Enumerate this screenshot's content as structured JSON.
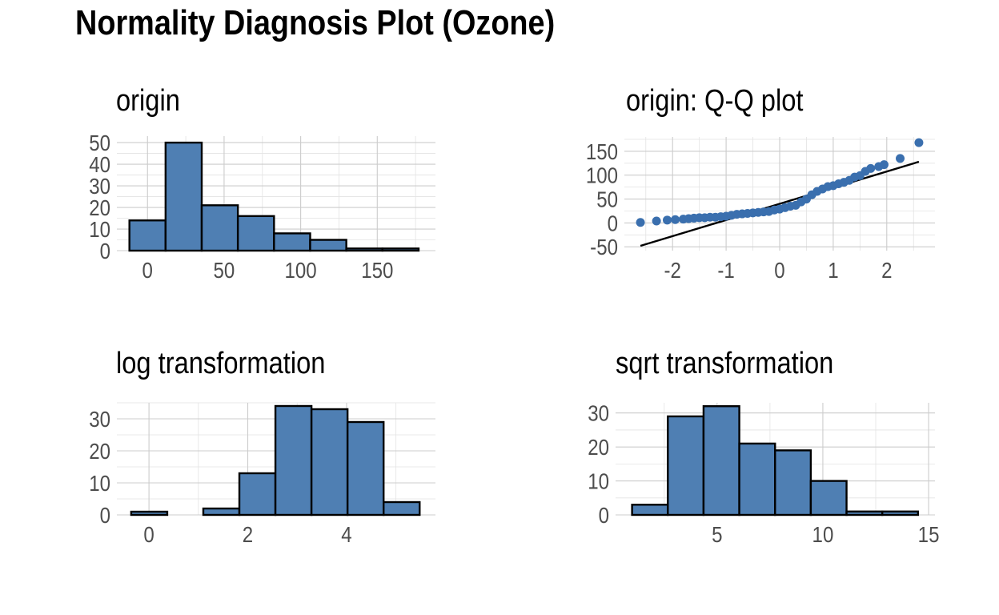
{
  "title": "Normality Diagnosis Plot (Ozone)",
  "colors": {
    "fill": "#4f7fb3",
    "point": "#3a6fae",
    "outline": "#000000",
    "grid": "#cccccc"
  },
  "chart_data": [
    {
      "id": "origin",
      "type": "bar",
      "title": "origin",
      "bins": [
        {
          "x0": -11.8,
          "x1": 11.8,
          "count": 14
        },
        {
          "x0": 11.8,
          "x1": 35.4,
          "count": 50
        },
        {
          "x0": 35.4,
          "x1": 59.0,
          "count": 21
        },
        {
          "x0": 59.0,
          "x1": 82.6,
          "count": 16
        },
        {
          "x0": 82.6,
          "x1": 106.2,
          "count": 8
        },
        {
          "x0": 106.2,
          "x1": 129.8,
          "count": 5
        },
        {
          "x0": 129.8,
          "x1": 153.4,
          "count": 1
        },
        {
          "x0": 153.4,
          "x1": 177.0,
          "count": 1
        }
      ],
      "xticks": [
        0,
        50,
        100,
        150
      ],
      "yticks": [
        0,
        10,
        20,
        30,
        40,
        50
      ],
      "xlim": [
        -20,
        188
      ],
      "ylim": [
        0,
        53
      ],
      "xlabel": "",
      "ylabel": ""
    },
    {
      "id": "origin-qq",
      "type": "scatter",
      "title": "origin: Q-Q plot",
      "points": [
        [
          -2.6,
          1
        ],
        [
          -2.3,
          4
        ],
        [
          -2.1,
          6
        ],
        [
          -1.95,
          7
        ],
        [
          -1.8,
          8
        ],
        [
          -1.7,
          9
        ],
        [
          -1.6,
          10
        ],
        [
          -1.5,
          11
        ],
        [
          -1.4,
          11
        ],
        [
          -1.3,
          12
        ],
        [
          -1.2,
          12
        ],
        [
          -1.1,
          13
        ],
        [
          -1.0,
          14
        ],
        [
          -0.9,
          16
        ],
        [
          -0.8,
          18
        ],
        [
          -0.7,
          19
        ],
        [
          -0.6,
          20
        ],
        [
          -0.5,
          21
        ],
        [
          -0.4,
          22
        ],
        [
          -0.3,
          23
        ],
        [
          -0.2,
          24
        ],
        [
          -0.1,
          27
        ],
        [
          0.0,
          29
        ],
        [
          0.1,
          32
        ],
        [
          0.2,
          35
        ],
        [
          0.3,
          37
        ],
        [
          0.4,
          44
        ],
        [
          0.5,
          50
        ],
        [
          0.6,
          59
        ],
        [
          0.7,
          66
        ],
        [
          0.8,
          71
        ],
        [
          0.9,
          76
        ],
        [
          1.0,
          78
        ],
        [
          1.1,
          82
        ],
        [
          1.2,
          85
        ],
        [
          1.3,
          89
        ],
        [
          1.4,
          96
        ],
        [
          1.5,
          99
        ],
        [
          1.6,
          108
        ],
        [
          1.7,
          114
        ],
        [
          1.85,
          118
        ],
        [
          1.95,
          122
        ],
        [
          2.25,
          135
        ],
        [
          2.6,
          168
        ]
      ],
      "line": [
        [
          -2.6,
          -48
        ],
        [
          2.6,
          128
        ]
      ],
      "xticks": [
        -2,
        -1,
        0,
        1,
        2
      ],
      "yticks": [
        -50,
        0,
        50,
        100,
        150
      ],
      "xlim": [
        -2.9,
        2.9
      ],
      "ylim": [
        -58,
        180
      ],
      "xlabel": "",
      "ylabel": ""
    },
    {
      "id": "log",
      "type": "bar",
      "title": "log transformation",
      "bins": [
        {
          "x0": -0.36,
          "x1": 0.37,
          "count": 1
        },
        {
          "x0": 0.37,
          "x1": 1.1,
          "count": 0
        },
        {
          "x0": 1.1,
          "x1": 1.83,
          "count": 2
        },
        {
          "x0": 1.83,
          "x1": 2.56,
          "count": 13
        },
        {
          "x0": 2.56,
          "x1": 3.29,
          "count": 34
        },
        {
          "x0": 3.29,
          "x1": 4.02,
          "count": 33
        },
        {
          "x0": 4.02,
          "x1": 4.75,
          "count": 29
        },
        {
          "x0": 4.75,
          "x1": 5.48,
          "count": 4
        }
      ],
      "xticks": [
        0,
        2,
        4
      ],
      "yticks": [
        0,
        10,
        20,
        30
      ],
      "xlim": [
        -0.65,
        5.8
      ],
      "ylim": [
        0,
        35
      ],
      "xlabel": "",
      "ylabel": ""
    },
    {
      "id": "sqrt",
      "type": "bar",
      "title": "sqrt transformation",
      "bins": [
        {
          "x0": 0.98,
          "x1": 2.67,
          "count": 3
        },
        {
          "x0": 2.67,
          "x1": 4.36,
          "count": 29
        },
        {
          "x0": 4.36,
          "x1": 6.05,
          "count": 32
        },
        {
          "x0": 6.05,
          "x1": 7.74,
          "count": 21
        },
        {
          "x0": 7.74,
          "x1": 9.43,
          "count": 19
        },
        {
          "x0": 9.43,
          "x1": 11.12,
          "count": 10
        },
        {
          "x0": 11.12,
          "x1": 12.81,
          "count": 1
        },
        {
          "x0": 12.81,
          "x1": 14.5,
          "count": 1
        }
      ],
      "xticks": [
        5,
        10,
        15
      ],
      "yticks": [
        0,
        10,
        20,
        30
      ],
      "xlim": [
        0.2,
        15.3
      ],
      "ylim": [
        0,
        33
      ],
      "xlabel": "",
      "ylabel": ""
    }
  ]
}
